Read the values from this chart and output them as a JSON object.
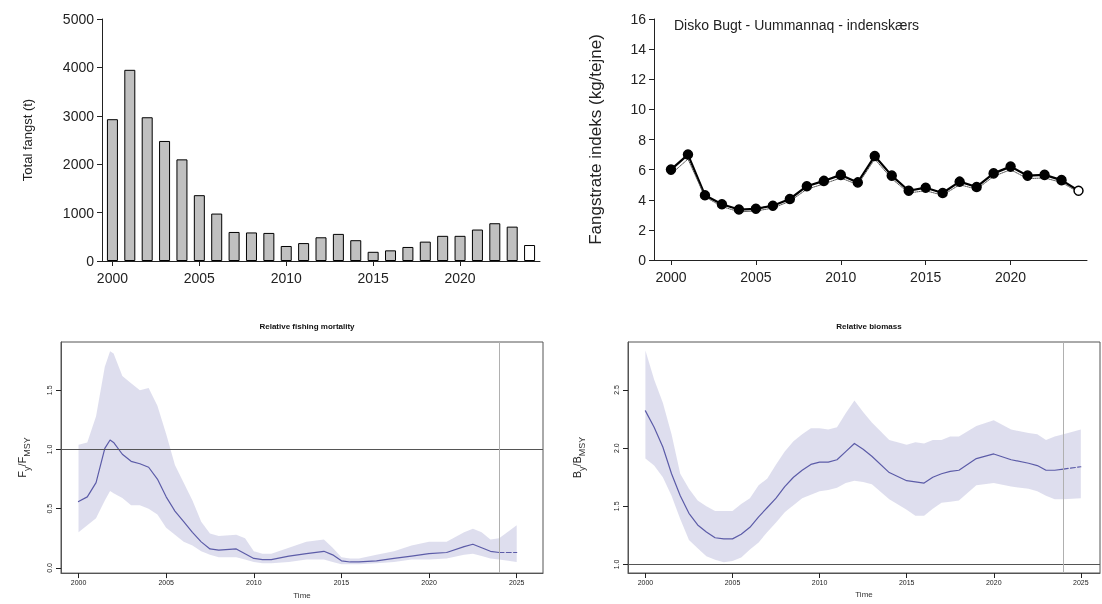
{
  "chart_data": [
    {
      "type": "bar",
      "ylabel": "Total fangst (t)",
      "x": [
        2000,
        2001,
        2002,
        2003,
        2004,
        2005,
        2006,
        2007,
        2008,
        2009,
        2010,
        2011,
        2012,
        2013,
        2014,
        2015,
        2016,
        2017,
        2018,
        2019,
        2020,
        2021,
        2022,
        2023,
        2024
      ],
      "values": [
        2930,
        3950,
        2970,
        2480,
        2100,
        1360,
        980,
        600,
        590,
        580,
        310,
        370,
        490,
        560,
        430,
        190,
        220,
        290,
        400,
        520,
        520,
        650,
        780,
        710,
        330
      ],
      "colors": [
        "#c0c0c0",
        "#c0c0c0",
        "#c0c0c0",
        "#c0c0c0",
        "#c0c0c0",
        "#c0c0c0",
        "#c0c0c0",
        "#c0c0c0",
        "#c0c0c0",
        "#c0c0c0",
        "#c0c0c0",
        "#c0c0c0",
        "#c0c0c0",
        "#c0c0c0",
        "#c0c0c0",
        "#c0c0c0",
        "#c0c0c0",
        "#c0c0c0",
        "#c0c0c0",
        "#c0c0c0",
        "#c0c0c0",
        "#c0c0c0",
        "#c0c0c0",
        "#c0c0c0",
        "#ffffff"
      ],
      "xlim": [
        1999.4,
        2024.6
      ],
      "xticks": [
        2000,
        2005,
        2010,
        2015,
        2020
      ],
      "ylim": [
        0,
        5000
      ],
      "yticks": [
        0,
        1000,
        2000,
        3000,
        4000,
        5000
      ],
      "grid": false
    },
    {
      "type": "line",
      "ylabel": "Fangstrate indeks (kg/tejne)",
      "annotations": [
        "Disko Bugt - Uummannaq - indenskærs"
      ],
      "x": [
        2000,
        2001,
        2002,
        2003,
        2004,
        2005,
        2006,
        2007,
        2008,
        2009,
        2010,
        2011,
        2012,
        2013,
        2014,
        2015,
        2016,
        2017,
        2018,
        2019,
        2020,
        2021,
        2022,
        2023,
        2024
      ],
      "series": [
        {
          "color": "#000000",
          "marker": "circle",
          "line_style": "solid",
          "values": [
            6.0,
            7.0,
            4.3,
            3.7,
            3.35,
            3.4,
            3.6,
            4.05,
            4.9,
            5.25,
            5.65,
            5.15,
            6.9,
            5.6,
            4.6,
            4.8,
            4.45,
            5.2,
            4.85,
            5.75,
            6.2,
            5.6,
            5.65,
            5.3,
            4.6
          ],
          "colors": [
            "#000000",
            "#000000",
            "#000000",
            "#000000",
            "#000000",
            "#000000",
            "#000000",
            "#000000",
            "#000000",
            "#000000",
            "#000000",
            "#000000",
            "#000000",
            "#000000",
            "#000000",
            "#000000",
            "#000000",
            "#000000",
            "#000000",
            "#000000",
            "#000000",
            "#000000",
            "#000000",
            "#000000",
            "#ffffff"
          ]
        },
        {
          "color": "#555555",
          "marker": "none",
          "line_style": "dotted",
          "values": [
            5.7,
            6.7,
            4.2,
            3.55,
            3.2,
            3.25,
            3.45,
            3.9,
            4.7,
            5.05,
            5.45,
            5.0,
            6.7,
            5.4,
            4.45,
            4.6,
            4.3,
            5.0,
            4.7,
            5.55,
            6.0,
            5.4,
            5.45,
            5.15,
            4.5
          ]
        }
      ],
      "xlim": [
        1999,
        2024.5
      ],
      "xticks": [
        2000,
        2005,
        2010,
        2015,
        2020
      ],
      "ylim": [
        0,
        16
      ],
      "yticks": [
        0,
        2,
        4,
        6,
        8,
        10,
        12,
        14,
        16
      ],
      "grid": false
    },
    {
      "type": "line",
      "title": "Relative fishing mortality",
      "xlabel": "Time",
      "ylabel": "F$_{y}$/F$_{MSY}$",
      "series": [
        {
          "color": "#5c5ca8",
          "line_style": "solid",
          "x": [
            2000,
            2000.5,
            2001,
            2001.5,
            2001.8,
            2002,
            2002.5,
            2003,
            2003.5,
            2004,
            2004.5,
            2005,
            2005.5,
            2006,
            2006.5,
            2007,
            2007.5,
            2008,
            2009,
            2009.5,
            2010,
            2010.5,
            2011,
            2012,
            2013,
            2014,
            2014.5,
            2015,
            2015.5,
            2016,
            2017,
            2018,
            2019,
            2020,
            2021,
            2022,
            2022.5,
            2023,
            2023.5,
            2024
          ],
          "values": [
            0.56,
            0.6,
            0.72,
            1.01,
            1.08,
            1.06,
            0.96,
            0.9,
            0.88,
            0.85,
            0.75,
            0.6,
            0.48,
            0.39,
            0.3,
            0.22,
            0.16,
            0.15,
            0.16,
            0.12,
            0.08,
            0.07,
            0.07,
            0.1,
            0.12,
            0.14,
            0.11,
            0.06,
            0.05,
            0.05,
            0.06,
            0.08,
            0.1,
            0.12,
            0.13,
            0.18,
            0.2,
            0.17,
            0.14,
            0.13
          ],
          "upper": [
            1.04,
            1.06,
            1.28,
            1.7,
            1.83,
            1.81,
            1.62,
            1.56,
            1.5,
            1.52,
            1.37,
            1.13,
            0.87,
            0.72,
            0.57,
            0.39,
            0.29,
            0.27,
            0.28,
            0.25,
            0.14,
            0.12,
            0.12,
            0.17,
            0.22,
            0.24,
            0.17,
            0.09,
            0.08,
            0.08,
            0.11,
            0.14,
            0.19,
            0.22,
            0.22,
            0.3,
            0.33,
            0.3,
            0.24,
            0.25
          ],
          "lower": [
            0.3,
            0.36,
            0.42,
            0.57,
            0.65,
            0.63,
            0.59,
            0.53,
            0.53,
            0.5,
            0.45,
            0.34,
            0.28,
            0.22,
            0.19,
            0.14,
            0.11,
            0.09,
            0.09,
            0.07,
            0.05,
            0.04,
            0.04,
            0.05,
            0.07,
            0.07,
            0.05,
            0.03,
            0.03,
            0.03,
            0.04,
            0.05,
            0.07,
            0.07,
            0.08,
            0.11,
            0.12,
            0.1,
            0.08,
            0.07
          ]
        },
        {
          "color": "#5c5ca8",
          "line_style": "dashed",
          "x": [
            2024,
            2025
          ],
          "values": [
            0.13,
            0.13
          ],
          "upper": [
            0.25,
            0.36
          ],
          "lower": [
            0.07,
            0.05
          ]
        }
      ],
      "xlim": [
        1999,
        2026.5
      ],
      "xticks": [
        2000,
        2005,
        2010,
        2015,
        2020,
        2025
      ],
      "ylim": [
        -0.044,
        1.908
      ],
      "yticks": [
        {
          "value": 0,
          "label": "0.0"
        },
        {
          "value": 0.5,
          "label": "0.5"
        },
        {
          "value": 1,
          "label": "1.0"
        },
        {
          "value": 1.5,
          "label": "1.5"
        }
      ],
      "ref_lines": [
        {
          "axis": "y",
          "value": 1,
          "color": "#555555"
        },
        {
          "axis": "x",
          "value": 2024,
          "color": "#b0b0b0"
        }
      ],
      "grid": false
    },
    {
      "type": "line",
      "title": "Relative biomass",
      "xlabel": "Time",
      "ylabel": "B$_{y}$/B$_{MSY}$",
      "series": [
        {
          "color": "#5c5ca8",
          "line_style": "solid",
          "x": [
            2000,
            2000.5,
            2001,
            2001.5,
            2002,
            2002.5,
            2003,
            2003.5,
            2004,
            2004.5,
            2005,
            2005.5,
            2006,
            2006.5,
            2007,
            2007.5,
            2008,
            2008.5,
            2009,
            2009.5,
            2010,
            2010.5,
            2011,
            2011.5,
            2012,
            2012.5,
            2013,
            2014,
            2015,
            2015.5,
            2016,
            2016.5,
            2017,
            2017.5,
            2018,
            2019,
            2020,
            2021,
            2022,
            2022.5,
            2023,
            2023.5,
            2024
          ],
          "values": [
            2.32,
            2.18,
            2.01,
            1.78,
            1.59,
            1.44,
            1.34,
            1.28,
            1.23,
            1.22,
            1.22,
            1.26,
            1.32,
            1.41,
            1.49,
            1.57,
            1.67,
            1.75,
            1.81,
            1.86,
            1.88,
            1.88,
            1.9,
            1.97,
            2.04,
            1.99,
            1.93,
            1.79,
            1.72,
            1.71,
            1.7,
            1.75,
            1.78,
            1.8,
            1.81,
            1.91,
            1.95,
            1.9,
            1.87,
            1.85,
            1.81,
            1.81,
            1.82
          ],
          "upper": [
            2.84,
            2.59,
            2.39,
            2.12,
            1.78,
            1.65,
            1.55,
            1.5,
            1.46,
            1.46,
            1.46,
            1.52,
            1.57,
            1.68,
            1.74,
            1.86,
            1.97,
            2.06,
            2.12,
            2.17,
            2.17,
            2.16,
            2.18,
            2.3,
            2.41,
            2.31,
            2.22,
            2.07,
            2.03,
            2.05,
            2.04,
            2.07,
            2.07,
            2.1,
            2.1,
            2.19,
            2.24,
            2.16,
            2.13,
            2.12,
            2.07,
            2.1,
            2.12
          ],
          "lower": [
            1.91,
            1.85,
            1.75,
            1.59,
            1.39,
            1.21,
            1.14,
            1.07,
            1.04,
            1.02,
            1.03,
            1.06,
            1.13,
            1.19,
            1.28,
            1.36,
            1.45,
            1.51,
            1.57,
            1.6,
            1.63,
            1.64,
            1.66,
            1.7,
            1.72,
            1.71,
            1.69,
            1.56,
            1.47,
            1.42,
            1.42,
            1.48,
            1.53,
            1.54,
            1.55,
            1.68,
            1.7,
            1.67,
            1.65,
            1.63,
            1.59,
            1.56,
            1.56
          ]
        },
        {
          "color": "#5c5ca8",
          "line_style": "dashed",
          "x": [
            2024,
            2025
          ],
          "values": [
            1.82,
            1.84
          ],
          "upper": [
            2.12,
            2.16
          ],
          "lower": [
            1.56,
            1.57
          ]
        }
      ],
      "xlim": [
        1999,
        2026.1
      ],
      "xticks": [
        2000,
        2005,
        2010,
        2015,
        2020,
        2025
      ],
      "ylim": [
        0.927,
        2.912
      ],
      "yticks": [
        {
          "value": 1,
          "label": "1.0"
        },
        {
          "value": 1.5,
          "label": "1.5"
        },
        {
          "value": 2,
          "label": "2.0"
        },
        {
          "value": 2.5,
          "label": "2.5"
        }
      ],
      "ref_lines": [
        {
          "axis": "y",
          "value": 1,
          "color": "#555555"
        },
        {
          "axis": "x",
          "value": 2024,
          "color": "#b0b0b0"
        }
      ],
      "grid": false
    }
  ]
}
